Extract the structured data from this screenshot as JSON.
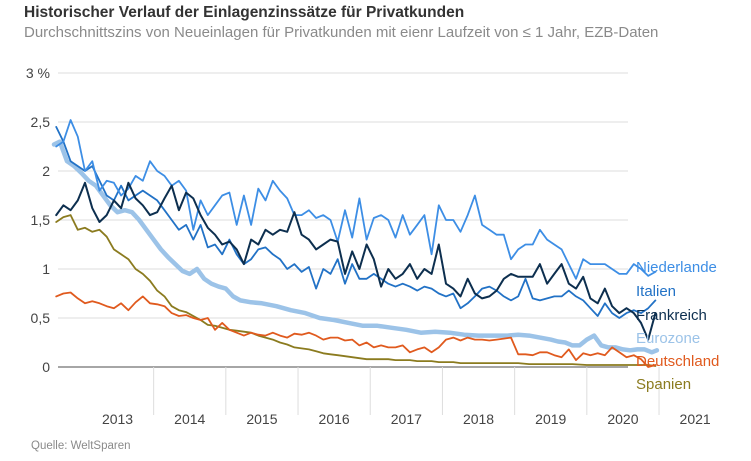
{
  "title": "Historischer Verlauf der Einlagenzinssätze für Privatkunden",
  "subtitle": "Durchschnittszins von Neueinlagen für Privatkunden mit eienr Laufzeit von ≤ 1 Jahr, EZB-Daten",
  "source": "Quelle: WeltSparen",
  "chart_data": {
    "type": "line",
    "y_ticks": [
      "0",
      "0,5",
      "1",
      "1,5",
      "2",
      "2,5",
      "3 %"
    ],
    "x_ticks": [
      "2013",
      "2014",
      "2015",
      "2016",
      "2017",
      "2018",
      "2019",
      "2020",
      "2021"
    ],
    "xlim": [
      2012.62,
      2021.05
    ],
    "ylim": [
      -0.2,
      3.0
    ],
    "grid": true,
    "legend_placement": "right",
    "series": [
      {
        "name": "Niederlande",
        "color": "#3d8ee5",
        "width": 1.8,
        "x": [
          2012.65,
          2012.75,
          2012.85,
          2012.95,
          2013.05,
          2013.15,
          2013.25,
          2013.35,
          2013.45,
          2013.55,
          2013.65,
          2013.75,
          2013.85,
          2013.95,
          2014.05,
          2014.15,
          2014.25,
          2014.35,
          2014.45,
          2014.55,
          2014.65,
          2014.75,
          2014.85,
          2014.95,
          2015.05,
          2015.15,
          2015.25,
          2015.35,
          2015.45,
          2015.55,
          2015.65,
          2015.75,
          2015.85,
          2015.95,
          2016.05,
          2016.15,
          2016.25,
          2016.35,
          2016.45,
          2016.55,
          2016.65,
          2016.75,
          2016.85,
          2016.95,
          2017.05,
          2017.15,
          2017.25,
          2017.35,
          2017.45,
          2017.55,
          2017.65,
          2017.75,
          2017.85,
          2017.95,
          2018.05,
          2018.15,
          2018.25,
          2018.35,
          2018.45,
          2018.55,
          2018.65,
          2018.75,
          2018.85,
          2018.95,
          2019.05,
          2019.15,
          2019.25,
          2019.35,
          2019.45,
          2019.55,
          2019.65,
          2019.75,
          2019.85,
          2019.95,
          2020.05,
          2020.15,
          2020.25,
          2020.35,
          2020.45,
          2020.55,
          2020.65,
          2020.75,
          2020.85,
          2020.95
        ],
        "values": [
          2.25,
          2.3,
          2.52,
          2.35,
          2.0,
          2.1,
          1.8,
          1.9,
          1.88,
          1.75,
          1.82,
          1.95,
          1.9,
          2.1,
          2.0,
          1.95,
          1.85,
          1.9,
          1.8,
          1.4,
          1.7,
          1.55,
          1.65,
          1.75,
          1.78,
          1.45,
          1.75,
          1.45,
          1.82,
          1.7,
          1.9,
          1.8,
          1.72,
          1.55,
          1.55,
          1.6,
          1.52,
          1.55,
          1.5,
          1.28,
          1.6,
          1.32,
          1.72,
          1.3,
          1.52,
          1.55,
          1.5,
          1.32,
          1.55,
          1.35,
          1.45,
          1.55,
          1.15,
          1.65,
          1.5,
          1.5,
          1.38,
          1.55,
          1.75,
          1.45,
          1.4,
          1.35,
          1.35,
          1.1,
          1.2,
          1.25,
          1.25,
          1.4,
          1.3,
          1.25,
          1.2,
          1.05,
          0.9,
          1.1,
          1.05,
          1.05,
          1.05,
          1.0,
          0.95,
          0.95,
          1.05,
          1.0,
          0.93,
          0.97
        ]
      },
      {
        "name": "Italien",
        "color": "#2272c6",
        "width": 1.8,
        "x": [
          2012.65,
          2012.75,
          2012.85,
          2012.95,
          2013.05,
          2013.15,
          2013.25,
          2013.35,
          2013.45,
          2013.55,
          2013.65,
          2013.75,
          2013.85,
          2013.95,
          2014.05,
          2014.15,
          2014.25,
          2014.35,
          2014.45,
          2014.55,
          2014.65,
          2014.75,
          2014.85,
          2014.95,
          2015.05,
          2015.15,
          2015.25,
          2015.35,
          2015.45,
          2015.55,
          2015.65,
          2015.75,
          2015.85,
          2015.95,
          2016.05,
          2016.15,
          2016.25,
          2016.35,
          2016.45,
          2016.55,
          2016.65,
          2016.75,
          2016.85,
          2016.95,
          2017.05,
          2017.15,
          2017.25,
          2017.35,
          2017.45,
          2017.55,
          2017.65,
          2017.75,
          2017.85,
          2017.95,
          2018.05,
          2018.15,
          2018.25,
          2018.35,
          2018.45,
          2018.55,
          2018.65,
          2018.75,
          2018.85,
          2018.95,
          2019.05,
          2019.15,
          2019.25,
          2019.35,
          2019.45,
          2019.55,
          2019.65,
          2019.75,
          2019.85,
          2019.95,
          2020.05,
          2020.15,
          2020.25,
          2020.35,
          2020.45,
          2020.55,
          2020.65,
          2020.75,
          2020.85,
          2020.95
        ],
        "values": [
          2.45,
          2.3,
          2.1,
          2.05,
          2.0,
          2.05,
          1.9,
          1.75,
          1.7,
          1.85,
          1.7,
          1.75,
          1.8,
          1.75,
          1.7,
          1.6,
          1.5,
          1.4,
          1.45,
          1.3,
          1.45,
          1.22,
          1.25,
          1.15,
          1.3,
          1.15,
          1.05,
          1.1,
          1.2,
          1.22,
          1.15,
          1.1,
          1.0,
          1.05,
          0.97,
          1.02,
          0.8,
          1.0,
          0.95,
          1.1,
          0.85,
          1.05,
          0.9,
          0.9,
          0.95,
          0.9,
          0.85,
          0.82,
          0.85,
          0.82,
          0.78,
          0.82,
          0.8,
          0.75,
          0.72,
          0.75,
          0.6,
          0.65,
          0.72,
          0.8,
          0.82,
          0.78,
          0.72,
          0.68,
          0.72,
          0.9,
          0.7,
          0.68,
          0.7,
          0.72,
          0.72,
          0.78,
          0.72,
          0.68,
          0.6,
          0.52,
          0.65,
          0.55,
          0.5,
          0.55,
          0.58,
          0.55,
          0.6,
          0.68
        ]
      },
      {
        "name": "Frankreich",
        "color": "#0d2f4f",
        "width": 2.0,
        "x": [
          2012.65,
          2012.75,
          2012.85,
          2012.95,
          2013.05,
          2013.15,
          2013.25,
          2013.35,
          2013.45,
          2013.55,
          2013.65,
          2013.75,
          2013.85,
          2013.95,
          2014.05,
          2014.15,
          2014.25,
          2014.35,
          2014.45,
          2014.55,
          2014.65,
          2014.75,
          2014.85,
          2014.95,
          2015.05,
          2015.15,
          2015.25,
          2015.35,
          2015.45,
          2015.55,
          2015.65,
          2015.75,
          2015.85,
          2015.95,
          2016.05,
          2016.15,
          2016.25,
          2016.35,
          2016.45,
          2016.55,
          2016.65,
          2016.75,
          2016.85,
          2016.95,
          2017.05,
          2017.15,
          2017.25,
          2017.35,
          2017.45,
          2017.55,
          2017.65,
          2017.75,
          2017.85,
          2017.95,
          2018.05,
          2018.15,
          2018.25,
          2018.35,
          2018.45,
          2018.55,
          2018.65,
          2018.75,
          2018.85,
          2018.95,
          2019.05,
          2019.15,
          2019.25,
          2019.35,
          2019.45,
          2019.55,
          2019.65,
          2019.75,
          2019.85,
          2019.95,
          2020.05,
          2020.15,
          2020.25,
          2020.35,
          2020.45,
          2020.55,
          2020.65,
          2020.75,
          2020.85,
          2020.95
        ],
        "values": [
          1.55,
          1.65,
          1.6,
          1.7,
          1.88,
          1.62,
          1.48,
          1.55,
          1.7,
          1.62,
          1.88,
          1.72,
          1.65,
          1.55,
          1.58,
          1.72,
          1.85,
          1.6,
          1.78,
          1.72,
          1.55,
          1.42,
          1.35,
          1.25,
          1.28,
          1.2,
          1.05,
          1.3,
          1.25,
          1.4,
          1.35,
          1.4,
          1.38,
          1.58,
          1.35,
          1.3,
          1.2,
          1.25,
          1.3,
          1.28,
          0.95,
          1.18,
          1.0,
          1.25,
          1.1,
          0.82,
          1.0,
          0.9,
          0.95,
          1.05,
          0.9,
          1.0,
          0.95,
          1.25,
          0.85,
          0.8,
          0.72,
          0.9,
          0.75,
          0.7,
          0.72,
          0.78,
          0.9,
          0.95,
          0.92,
          0.92,
          0.92,
          1.05,
          0.85,
          0.95,
          1.05,
          0.85,
          0.8,
          0.92,
          0.7,
          0.65,
          0.8,
          0.62,
          0.55,
          0.6,
          0.55,
          0.45,
          0.28,
          0.55
        ]
      },
      {
        "name": "Eurozone",
        "color": "#9cc3e8",
        "width": 4.5,
        "x": [
          2012.62,
          2012.7,
          2012.8,
          2012.9,
          2013.0,
          2013.1,
          2013.2,
          2013.3,
          2013.4,
          2013.5,
          2013.6,
          2013.7,
          2013.8,
          2013.9,
          2014.0,
          2014.1,
          2014.2,
          2014.3,
          2014.4,
          2014.5,
          2014.6,
          2014.7,
          2014.8,
          2014.9,
          2015.0,
          2015.1,
          2015.2,
          2015.35,
          2015.5,
          2015.7,
          2015.9,
          2016.1,
          2016.3,
          2016.5,
          2016.7,
          2016.9,
          2017.1,
          2017.3,
          2017.5,
          2017.7,
          2017.9,
          2018.1,
          2018.3,
          2018.5,
          2018.7,
          2018.9,
          2019.05,
          2019.2,
          2019.35,
          2019.5,
          2019.6,
          2019.7,
          2019.8,
          2019.9,
          2020.0,
          2020.1,
          2020.2,
          2020.3,
          2020.4,
          2020.5,
          2020.6,
          2020.7,
          2020.8,
          2020.9,
          2020.97
        ],
        "values": [
          2.27,
          2.3,
          2.1,
          2.05,
          1.98,
          1.9,
          1.85,
          1.75,
          1.65,
          1.58,
          1.6,
          1.58,
          1.5,
          1.4,
          1.3,
          1.2,
          1.12,
          1.05,
          0.98,
          0.95,
          1.0,
          0.9,
          0.85,
          0.82,
          0.8,
          0.72,
          0.68,
          0.66,
          0.65,
          0.62,
          0.58,
          0.55,
          0.5,
          0.48,
          0.45,
          0.42,
          0.42,
          0.4,
          0.38,
          0.35,
          0.36,
          0.35,
          0.33,
          0.32,
          0.32,
          0.32,
          0.33,
          0.32,
          0.3,
          0.28,
          0.26,
          0.25,
          0.22,
          0.22,
          0.28,
          0.32,
          0.22,
          0.2,
          0.2,
          0.18,
          0.17,
          0.18,
          0.18,
          0.15,
          0.17
        ]
      },
      {
        "name": "Deutschland",
        "color": "#e05a1e",
        "width": 1.8,
        "x": [
          2012.65,
          2012.75,
          2012.85,
          2012.95,
          2013.05,
          2013.15,
          2013.25,
          2013.35,
          2013.45,
          2013.55,
          2013.65,
          2013.75,
          2013.85,
          2013.95,
          2014.05,
          2014.15,
          2014.25,
          2014.35,
          2014.45,
          2014.55,
          2014.65,
          2014.75,
          2014.85,
          2014.95,
          2015.05,
          2015.15,
          2015.25,
          2015.35,
          2015.45,
          2015.55,
          2015.65,
          2015.75,
          2015.85,
          2015.95,
          2016.05,
          2016.15,
          2016.25,
          2016.35,
          2016.45,
          2016.55,
          2016.65,
          2016.75,
          2016.85,
          2016.95,
          2017.05,
          2017.15,
          2017.25,
          2017.35,
          2017.45,
          2017.55,
          2017.65,
          2017.75,
          2017.85,
          2017.95,
          2018.05,
          2018.15,
          2018.25,
          2018.35,
          2018.45,
          2018.55,
          2018.65,
          2018.75,
          2018.85,
          2018.95,
          2019.05,
          2019.15,
          2019.25,
          2019.35,
          2019.45,
          2019.55,
          2019.65,
          2019.75,
          2019.85,
          2019.95,
          2020.05,
          2020.15,
          2020.25,
          2020.35,
          2020.45,
          2020.55,
          2020.65,
          2020.75,
          2020.85,
          2020.95
        ],
        "values": [
          0.72,
          0.75,
          0.76,
          0.7,
          0.65,
          0.67,
          0.65,
          0.62,
          0.6,
          0.65,
          0.58,
          0.66,
          0.72,
          0.65,
          0.64,
          0.62,
          0.55,
          0.52,
          0.53,
          0.5,
          0.48,
          0.5,
          0.38,
          0.45,
          0.38,
          0.35,
          0.32,
          0.35,
          0.33,
          0.32,
          0.35,
          0.32,
          0.3,
          0.34,
          0.33,
          0.35,
          0.32,
          0.28,
          0.3,
          0.3,
          0.27,
          0.28,
          0.22,
          0.25,
          0.2,
          0.22,
          0.2,
          0.2,
          0.22,
          0.15,
          0.18,
          0.2,
          0.15,
          0.2,
          0.28,
          0.3,
          0.27,
          0.3,
          0.28,
          0.28,
          0.27,
          0.28,
          0.29,
          0.3,
          0.13,
          0.13,
          0.12,
          0.15,
          0.15,
          0.12,
          0.1,
          0.18,
          0.07,
          0.14,
          0.12,
          0.14,
          0.12,
          0.2,
          0.15,
          0.1,
          0.12,
          0.08,
          0.0,
          0.02
        ]
      },
      {
        "name": "Spanien",
        "color": "#8b7b1f",
        "width": 1.8,
        "x": [
          2012.65,
          2012.75,
          2012.85,
          2012.95,
          2013.05,
          2013.15,
          2013.25,
          2013.35,
          2013.45,
          2013.55,
          2013.65,
          2013.75,
          2013.85,
          2013.95,
          2014.05,
          2014.15,
          2014.25,
          2014.35,
          2014.45,
          2014.55,
          2014.65,
          2014.75,
          2014.85,
          2014.95,
          2015.05,
          2015.15,
          2015.25,
          2015.35,
          2015.45,
          2015.55,
          2015.65,
          2015.75,
          2015.85,
          2015.95,
          2016.05,
          2016.15,
          2016.25,
          2016.35,
          2016.45,
          2016.55,
          2016.65,
          2016.75,
          2016.85,
          2016.95,
          2017.05,
          2017.15,
          2017.25,
          2017.35,
          2017.45,
          2017.55,
          2017.65,
          2017.75,
          2017.85,
          2017.95,
          2018.05,
          2018.15,
          2018.25,
          2018.35,
          2018.45,
          2018.55,
          2018.65,
          2018.75,
          2018.85,
          2018.95,
          2019.05,
          2019.2,
          2019.4,
          2019.6,
          2019.8,
          2020.0,
          2020.2,
          2020.4,
          2020.6,
          2020.75,
          2020.85,
          2020.95
        ],
        "values": [
          1.48,
          1.53,
          1.55,
          1.4,
          1.42,
          1.38,
          1.4,
          1.33,
          1.2,
          1.15,
          1.1,
          1.0,
          0.95,
          0.88,
          0.78,
          0.72,
          0.62,
          0.58,
          0.56,
          0.52,
          0.48,
          0.43,
          0.42,
          0.4,
          0.38,
          0.37,
          0.36,
          0.35,
          0.32,
          0.3,
          0.28,
          0.25,
          0.23,
          0.2,
          0.19,
          0.18,
          0.16,
          0.14,
          0.13,
          0.12,
          0.11,
          0.1,
          0.09,
          0.08,
          0.08,
          0.08,
          0.08,
          0.07,
          0.07,
          0.07,
          0.06,
          0.06,
          0.06,
          0.05,
          0.05,
          0.05,
          0.04,
          0.04,
          0.04,
          0.04,
          0.04,
          0.04,
          0.04,
          0.04,
          0.04,
          0.03,
          0.03,
          0.03,
          0.03,
          0.02,
          0.02,
          0.02,
          0.02,
          0.02,
          0.02,
          0.01
        ]
      }
    ]
  }
}
